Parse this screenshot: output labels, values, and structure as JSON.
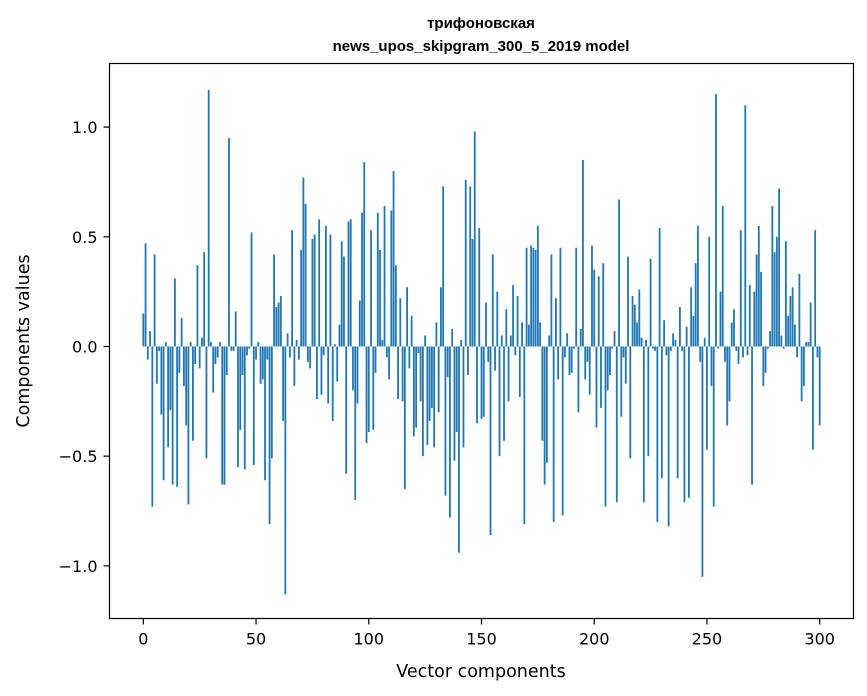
{
  "chart_data": {
    "type": "bar",
    "title_lines": [
      "трифоновская",
      "news_upos_skipgram_300_5_2019 model"
    ],
    "xlabel": "Vector components",
    "ylabel": "Components values",
    "xlim": [
      -15,
      315
    ],
    "ylim": [
      -1.24,
      1.29
    ],
    "xticks": [
      0,
      50,
      100,
      150,
      200,
      250,
      300
    ],
    "xtick_labels": [
      "0",
      "50",
      "100",
      "150",
      "200",
      "250",
      "300"
    ],
    "yticks": [
      -1.0,
      -0.5,
      0.0,
      0.5,
      1.0
    ],
    "ytick_labels": [
      "−1.0",
      "−0.5",
      "0.0",
      "0.5",
      "1.0"
    ],
    "grid": false,
    "bar_color": "#1f77b4",
    "values": [
      0.15,
      0.47,
      -0.06,
      0.07,
      -0.73,
      0.42,
      -0.17,
      -0.02,
      -0.31,
      -0.61,
      0.02,
      -0.46,
      -0.29,
      -0.63,
      0.31,
      -0.64,
      -0.12,
      0.13,
      -0.18,
      -0.36,
      -0.72,
      0.02,
      -0.43,
      -0.08,
      0.37,
      -0.1,
      0.04,
      0.43,
      -0.51,
      1.17,
      0.02,
      -0.21,
      -0.08,
      -0.05,
      0.02,
      -0.63,
      -0.63,
      -0.13,
      0.95,
      -0.02,
      -0.02,
      0.16,
      -0.55,
      -0.38,
      -0.13,
      -0.56,
      -0.04,
      -0.01,
      0.52,
      -0.54,
      -0.06,
      0.02,
      -0.17,
      -0.15,
      -0.61,
      -0.06,
      -0.81,
      -0.51,
      0.42,
      0.18,
      0.2,
      0.23,
      -0.34,
      -1.13,
      0.06,
      -0.05,
      0.53,
      -0.18,
      0.03,
      -0.06,
      0.44,
      0.77,
      0.65,
      -0.07,
      -0.1,
      0.49,
      0.51,
      -0.24,
      0.58,
      -0.22,
      -0.04,
      0.55,
      -0.26,
      0.51,
      -0.34,
      0.01,
      -0.16,
      0.1,
      0.48,
      0.41,
      -0.58,
      0.57,
      0.58,
      -0.2,
      -0.7,
      -0.26,
      0.21,
      0.61,
      0.84,
      -0.44,
      -0.39,
      0.53,
      -0.38,
      -0.12,
      0.61,
      0.44,
      0.03,
      0.64,
      -0.05,
      -0.15,
      0.62,
      0.8,
      0.37,
      -0.24,
      0.22,
      -0.25,
      -0.65,
      0.27,
      -0.1,
      0.14,
      -0.41,
      -0.37,
      -0.03,
      -0.25,
      -0.5,
      0.05,
      -0.45,
      -0.34,
      -0.28,
      -0.46,
      0.11,
      -0.3,
      0.27,
      0.73,
      -0.68,
      -0.14,
      -0.78,
      0.08,
      -0.52,
      -0.39,
      -0.94,
      0.03,
      -0.46,
      0.76,
      -0.13,
      0.73,
      0.49,
      0.98,
      -0.35,
      0.54,
      -0.33,
      -0.32,
      0.2,
      -0.07,
      -0.86,
      0.42,
      -0.11,
      0.25,
      -0.5,
      0.05,
      -0.43,
      0.17,
      -0.25,
      0.05,
      0.28,
      -0.04,
      0.23,
      -0.23,
      0.11,
      -0.81,
      0.45,
      0.1,
      0.46,
      0.45,
      0.44,
      0.55,
      0.11,
      -0.43,
      -0.63,
      -0.53,
      0.05,
      0.42,
      -0.8,
      0.22,
      -0.15,
      0.45,
      -0.77,
      -0.05,
      0.06,
      -0.13,
      -0.12,
      -0.01,
      0.45,
      -0.3,
      0.08,
      0.85,
      -0.15,
      -0.07,
      -0.22,
      0.46,
      0.35,
      -0.37,
      0.32,
      -0.28,
      0.38,
      -0.73,
      -0.2,
      -0.13,
      -0.01,
      0.07,
      -0.71,
      0.67,
      -0.32,
      -0.05,
      -0.17,
      0.41,
      -0.51,
      0.23,
      0.19,
      0.11,
      0.26,
      0.04,
      -0.71,
      0.03,
      -0.5,
      0.4,
      -0.01,
      -0.02,
      -0.8,
      0.54,
      -0.6,
      0.12,
      -0.04,
      -0.82,
      -0.02,
      0.06,
      0.03,
      -0.6,
      0.18,
      -0.02,
      -0.71,
      0.09,
      -0.69,
      0.27,
      0.14,
      0.38,
      0.55,
      -0.07,
      -1.05,
      0.04,
      -0.47,
      0.5,
      -0.18,
      -0.73,
      1.15,
      -0.01,
      0.25,
      0.64,
      -0.07,
      -0.36,
      -0.25,
      0.11,
      0.17,
      -0.02,
      -0.08,
      0.53,
      -0.05,
      1.1,
      -0.04,
      0.28,
      -0.63,
      0.25,
      0.42,
      0.55,
      0.34,
      -0.18,
      -0.12,
      -0.01,
      0.07,
      0.64,
      0.43,
      0.5,
      0.72,
      0.05,
      -0.01,
      0.48,
      0.14,
      0.23,
      0.27,
      0.1,
      -0.05,
      0.33,
      -0.25,
      -0.18,
      0.02,
      0.02,
      0.2,
      -0.47,
      0.53,
      -0.05,
      -0.36
    ]
  }
}
